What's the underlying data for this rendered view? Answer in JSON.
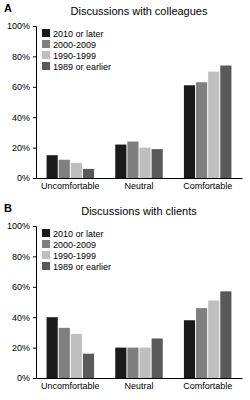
{
  "chart_data": [
    {
      "type": "bar",
      "title": "Discussions with colleagues",
      "annotations": [
        "A"
      ],
      "categories": [
        "Uncomfortable",
        "Neutral",
        "Comfortable"
      ],
      "series": [
        {
          "name": "2010 or later",
          "color": "#1a1a1a",
          "values": [
            15,
            22,
            61
          ]
        },
        {
          "name": "2000-2009",
          "color": "#7f7f7f",
          "values": [
            12,
            24,
            63
          ]
        },
        {
          "name": "1990-1999",
          "color": "#bfbfbf",
          "values": [
            10,
            20,
            70
          ]
        },
        {
          "name": "1989 or earlier",
          "color": "#595959",
          "values": [
            6,
            19,
            74
          ]
        }
      ],
      "ylim": [
        0,
        100
      ],
      "yticks": [
        {
          "value": 0,
          "label": "0%"
        },
        {
          "value": 20,
          "label": "20%"
        },
        {
          "value": 40,
          "label": "40%"
        },
        {
          "value": 60,
          "label": "60%"
        },
        {
          "value": 80,
          "label": "80%"
        },
        {
          "value": 100,
          "label": "100%"
        }
      ],
      "grid": false,
      "legend": "top-left"
    },
    {
      "type": "bar",
      "title": "Discussions with clients",
      "annotations": [
        "B"
      ],
      "categories": [
        "Uncomfortable",
        "Neutral",
        "Comfortable"
      ],
      "series": [
        {
          "name": "2010 or later",
          "color": "#1a1a1a",
          "values": [
            40,
            20,
            38
          ]
        },
        {
          "name": "2000-2009",
          "color": "#7f7f7f",
          "values": [
            33,
            20,
            46
          ]
        },
        {
          "name": "1990-1999",
          "color": "#bfbfbf",
          "values": [
            29,
            20,
            51
          ]
        },
        {
          "name": "1989 or earlier",
          "color": "#595959",
          "values": [
            16,
            26,
            57
          ]
        }
      ],
      "ylim": [
        0,
        100
      ],
      "yticks": [
        {
          "value": 0,
          "label": "0%"
        },
        {
          "value": 20,
          "label": "20%"
        },
        {
          "value": 40,
          "label": "40%"
        },
        {
          "value": 60,
          "label": "60%"
        },
        {
          "value": 80,
          "label": "80%"
        },
        {
          "value": 100,
          "label": "100%"
        }
      ],
      "grid": false,
      "legend": "top-left"
    }
  ]
}
